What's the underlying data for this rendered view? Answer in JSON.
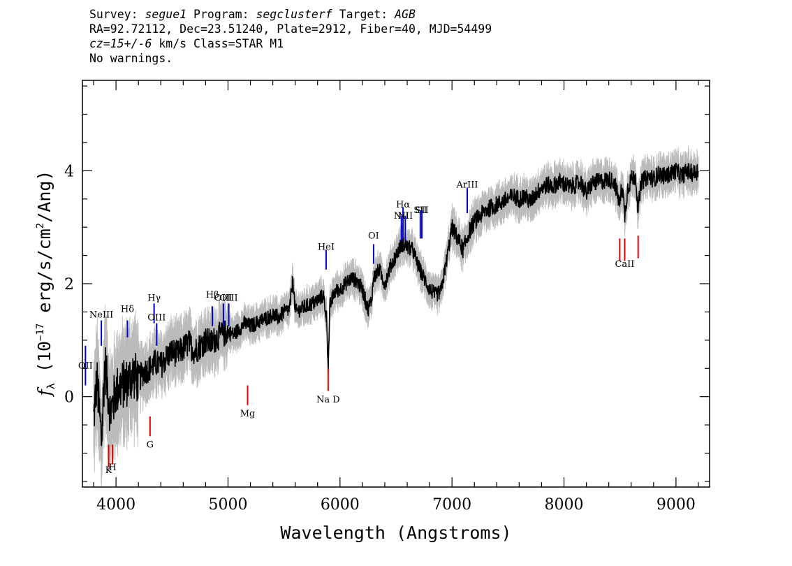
{
  "header": {
    "l1": {
      "a": "Survey: ",
      "b": "segue1",
      "c": " Program: ",
      "d": "segclusterf",
      "e": " Target: ",
      "f": "AGB"
    },
    "l2": "RA=92.72112, Dec=23.51240, Plate=2912, Fiber=40, MJD=54499",
    "l3": {
      "a": "cz=15+/-6",
      "b": " km/s Class=STAR M1"
    },
    "l4": "No warnings."
  },
  "colors": {
    "flux": "#000000",
    "error_band": "#bbbbbb",
    "emission": "#0000cc",
    "absorption": "#dd0000"
  },
  "chart_data": {
    "type": "line",
    "xlabel": "Wavelength (Angstroms)",
    "ylabel_parts": {
      "f": "f",
      "sub": "λ",
      "open": " (10",
      "exp": "−17",
      "mid": " erg/s/cm",
      "exp2": "2",
      "close": "/Ang)"
    },
    "xlim": [
      3700,
      9300
    ],
    "ylim": [
      -1.6,
      5.6
    ],
    "xticks": [
      4000,
      5000,
      6000,
      7000,
      8000,
      9000
    ],
    "yticks": [
      0,
      2,
      4
    ],
    "series": [
      {
        "x": [
          3800,
          3830,
          3870,
          3900,
          3950,
          4000,
          4050,
          4100,
          4150,
          4200,
          4250,
          4300,
          4350,
          4400,
          4450,
          4500,
          4550,
          4600,
          4650,
          4700,
          4750,
          4800,
          4850,
          4900,
          4950,
          5000,
          5050,
          5100,
          5150,
          5200,
          5250,
          5300,
          5350,
          5400,
          5450,
          5500,
          5550,
          5580,
          5600,
          5650,
          5700,
          5750,
          5800,
          5850,
          5880,
          5895,
          5910,
          5950,
          6000,
          6050,
          6100,
          6150,
          6200,
          6250,
          6280,
          6300,
          6350,
          6400,
          6450,
          6500,
          6550,
          6600,
          6650,
          6700,
          6750,
          6800,
          6850,
          6900,
          6950,
          7000,
          7050,
          7100,
          7150,
          7200,
          7250,
          7300,
          7350,
          7400,
          7450,
          7500,
          7550,
          7600,
          7650,
          7700,
          7750,
          7800,
          7850,
          7900,
          7950,
          8000,
          8050,
          8100,
          8150,
          8200,
          8250,
          8300,
          8350,
          8400,
          8450,
          8498,
          8520,
          8542,
          8570,
          8600,
          8640,
          8662,
          8690,
          8750,
          8800,
          8850,
          8900,
          8950,
          9000,
          9050,
          9100,
          9150,
          9200
        ],
        "y": [
          -0.4,
          0.3,
          -0.8,
          0.6,
          -0.3,
          0.1,
          0.2,
          0.25,
          0.4,
          0.3,
          0.45,
          0.5,
          0.6,
          0.55,
          0.7,
          0.8,
          0.75,
          0.85,
          0.95,
          0.8,
          0.9,
          1.0,
          0.95,
          1.05,
          1.1,
          1.15,
          1.1,
          1.2,
          1.3,
          1.25,
          1.3,
          1.35,
          1.4,
          1.45,
          1.4,
          1.5,
          1.55,
          2.1,
          1.5,
          1.55,
          1.6,
          1.65,
          1.7,
          1.8,
          1.4,
          0.55,
          1.6,
          1.85,
          1.9,
          2.0,
          2.1,
          2.05,
          1.9,
          1.55,
          1.7,
          2.1,
          2.25,
          2.0,
          2.3,
          2.5,
          2.7,
          2.65,
          2.6,
          2.3,
          2.1,
          1.9,
          1.8,
          1.85,
          2.4,
          3.0,
          2.8,
          2.6,
          2.9,
          3.1,
          3.2,
          3.3,
          3.35,
          3.4,
          3.45,
          3.5,
          3.55,
          3.5,
          3.55,
          3.45,
          3.6,
          3.7,
          3.75,
          3.72,
          3.8,
          3.78,
          3.7,
          3.75,
          3.8,
          3.6,
          3.78,
          3.8,
          3.82,
          3.85,
          3.8,
          3.4,
          3.8,
          3.2,
          3.7,
          3.85,
          3.9,
          3.3,
          3.8,
          3.9,
          3.85,
          3.95,
          3.9,
          3.95,
          4.0,
          3.9,
          4.0,
          3.95,
          4.0
        ]
      }
    ],
    "emission_lines": [
      {
        "label": "OII",
        "x": 3727
      },
      {
        "label": "NeIII",
        "x": 3869
      },
      {
        "label": "Hδ",
        "x": 4102
      },
      {
        "label": "Hγ",
        "x": 4340
      },
      {
        "label": "OIII",
        "x": 4363
      },
      {
        "label": "Hβ",
        "x": 4861
      },
      {
        "label": "OIII",
        "x": 4959
      },
      {
        "label": "OIII",
        "x": 5007
      },
      {
        "label": "HeI",
        "x": 5876
      },
      {
        "label": "OI",
        "x": 6300
      },
      {
        "label": "NII",
        "x": 6548
      },
      {
        "label": "Hα",
        "x": 6563
      },
      {
        "label": "NII",
        "x": 6583
      },
      {
        "label": "SII",
        "x": 6717
      },
      {
        "label": "SII",
        "x": 6731
      },
      {
        "label": "ArIII",
        "x": 7136
      }
    ],
    "absorption_lines": [
      {
        "label": "K",
        "x": 3934
      },
      {
        "label": "H",
        "x": 3969
      },
      {
        "label": "G",
        "x": 4304
      },
      {
        "label": "Mg",
        "x": 5175
      },
      {
        "label": "Na D",
        "x": 5894
      },
      {
        "label": "CaII",
        "x": 8498
      },
      {
        "label": "CaII",
        "x": 8542
      },
      {
        "label": "CaII",
        "x": 8662
      }
    ]
  }
}
